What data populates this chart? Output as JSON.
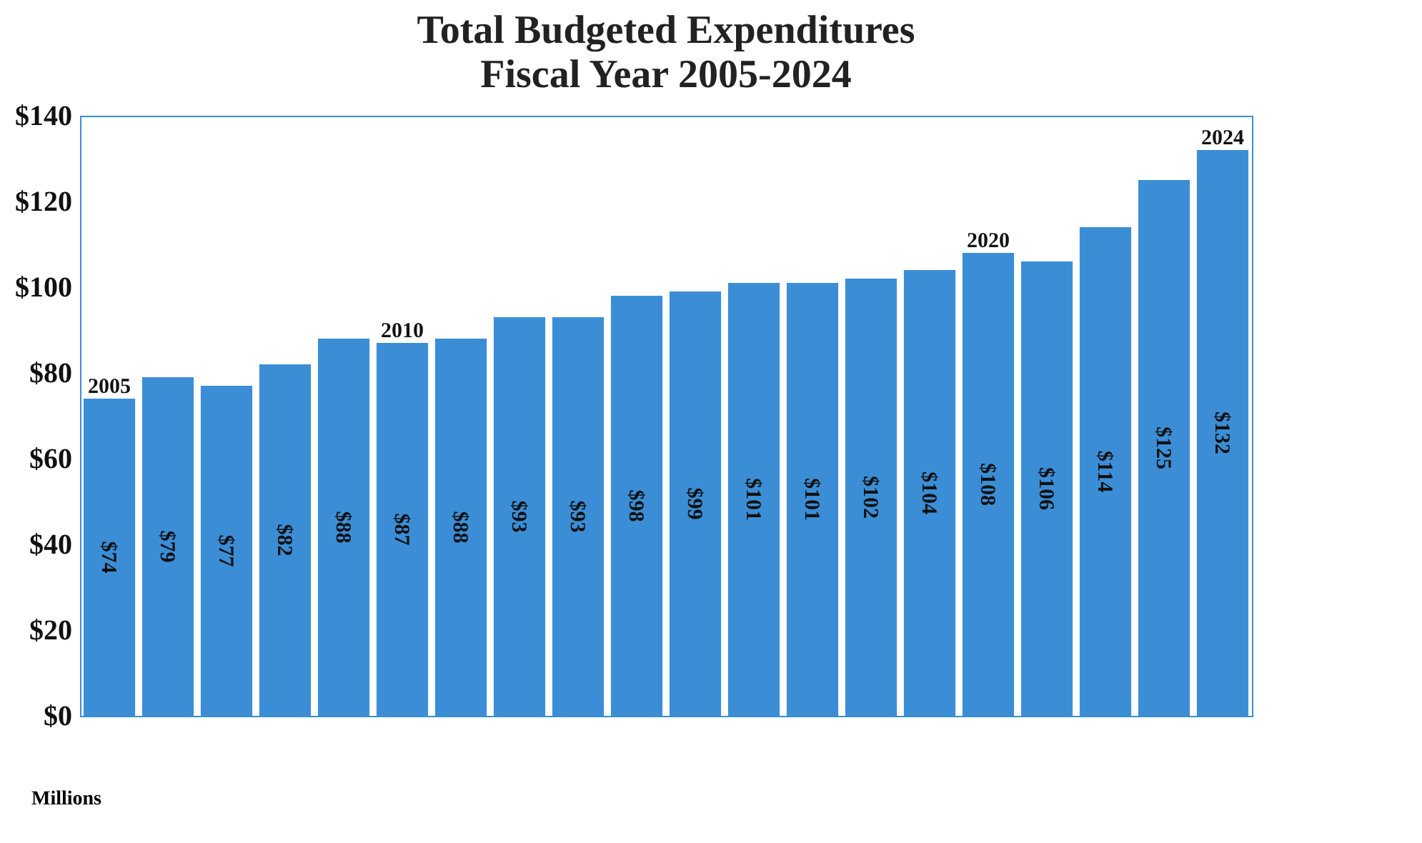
{
  "chart_data": {
    "type": "bar",
    "title": "Total Budgeted Expenditures",
    "subtitle": "Fiscal Year 2005-2024",
    "categories": [
      "2005",
      null,
      null,
      null,
      null,
      "2010",
      null,
      null,
      null,
      null,
      null,
      null,
      null,
      null,
      null,
      "2020",
      null,
      null,
      null,
      "2024"
    ],
    "values": [
      74,
      79,
      77,
      82,
      88,
      87,
      88,
      93,
      93,
      98,
      99,
      101,
      101,
      102,
      104,
      108,
      106,
      114,
      125,
      132
    ],
    "value_labels": [
      "$74",
      "$79",
      "$77",
      "$82",
      "$88",
      "$87",
      "$88",
      "$93",
      "$93",
      "$98",
      "$99",
      "$101",
      "$101",
      "$102",
      "$104",
      "$108",
      "$106",
      "$114",
      "$125",
      "$132"
    ],
    "color": "#3b8ed6",
    "ylim": [
      0,
      140
    ],
    "yticks": [
      {
        "value": 0,
        "label": "$0"
      },
      {
        "value": 20,
        "label": "$20"
      },
      {
        "value": 40,
        "label": "$40"
      },
      {
        "value": 60,
        "label": "$60"
      },
      {
        "value": 80,
        "label": "$80"
      },
      {
        "value": 100,
        "label": "$100"
      },
      {
        "value": 120,
        "label": "$120"
      },
      {
        "value": 140,
        "label": "$140"
      }
    ],
    "annotations": [
      "Millions"
    ],
    "grid": false
  }
}
